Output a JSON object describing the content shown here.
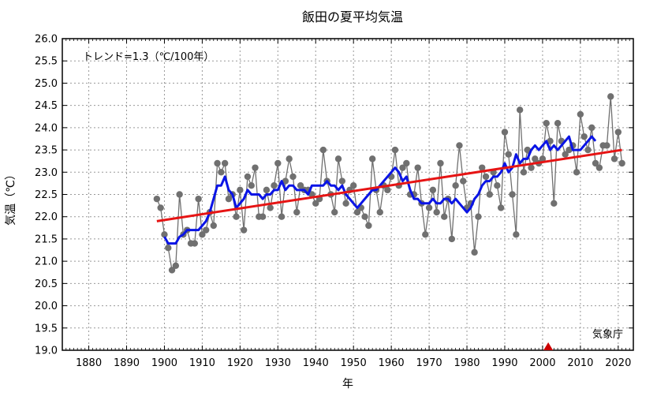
{
  "chart_data": {
    "type": "line",
    "title": "飯田の夏平均気温",
    "xlabel": "年",
    "ylabel": "気温（℃）",
    "annotation": "トレンド=1.3（℃/100年）",
    "source": "気象庁",
    "xlim": [
      1873,
      2024
    ],
    "ylim": [
      19.0,
      26.0
    ],
    "x_ticks": [
      1880,
      1890,
      1900,
      1910,
      1920,
      1930,
      1940,
      1950,
      1960,
      1970,
      1980,
      1990,
      2000,
      2010,
      2020
    ],
    "y_ticks": [
      "19.0",
      "19.5",
      "20.0",
      "20.5",
      "21.0",
      "21.5",
      "22.0",
      "22.5",
      "23.0",
      "23.5",
      "24.0",
      "24.5",
      "25.0",
      "25.5",
      "26.0"
    ],
    "grid": true,
    "marker_year": 2001.5,
    "colors": {
      "annual": "#707070",
      "moving_avg": "#0a14e6",
      "trend": "#e61414",
      "marker": "#cc0000",
      "grid": "#999999"
    },
    "series": [
      {
        "name": "",
        "kind": "annual",
        "start_year": 1898,
        "values": [
          22.4,
          22.2,
          21.6,
          21.3,
          20.8,
          20.9,
          22.5,
          21.6,
          21.7,
          21.4,
          21.4,
          22.4,
          21.6,
          21.7,
          22.1,
          21.8,
          23.2,
          23.0,
          23.2,
          22.4,
          22.5,
          22.0,
          22.6,
          21.7,
          22.9,
          22.7,
          23.1,
          22.0,
          22.0,
          22.6,
          22.2,
          22.7,
          23.2,
          22.0,
          22.8,
          23.3,
          22.9,
          22.1,
          22.7,
          22.6,
          22.6,
          22.5,
          22.3,
          22.4,
          23.5,
          22.8,
          22.5,
          22.1,
          23.3,
          22.8,
          22.3,
          22.6,
          22.7,
          22.1,
          22.2,
          22.0,
          21.8,
          23.3,
          22.6,
          22.1,
          22.7,
          22.6,
          22.9,
          23.5,
          22.7,
          23.1,
          23.2,
          22.5,
          22.5,
          23.1,
          22.3,
          21.6,
          22.2,
          22.6,
          22.1,
          23.2,
          22.0,
          22.4,
          21.5,
          22.7,
          23.6,
          22.8,
          22.2,
          22.3,
          21.2,
          22.0,
          23.1,
          22.9,
          22.5,
          23.0,
          22.7,
          22.2,
          23.9,
          23.4,
          22.5,
          21.6,
          24.4,
          23.0,
          23.5,
          23.1,
          23.3,
          23.2,
          23.3,
          24.1,
          23.7,
          22.3,
          24.1,
          23.7,
          23.4,
          23.5,
          23.6,
          23.0,
          24.3,
          23.8,
          23.5,
          24.0,
          23.2,
          23.1,
          23.6,
          23.6,
          24.7,
          23.3,
          23.9,
          23.2
        ]
      },
      {
        "name": "",
        "kind": "moving_average",
        "start_year": 1900,
        "values": [
          21.55,
          21.4,
          21.4,
          21.4,
          21.55,
          21.6,
          21.7,
          21.7,
          21.7,
          21.7,
          21.8,
          21.9,
          22.1,
          22.4,
          22.7,
          22.7,
          22.9,
          22.6,
          22.5,
          22.2,
          22.3,
          22.4,
          22.6,
          22.5,
          22.5,
          22.5,
          22.4,
          22.5,
          22.5,
          22.6,
          22.6,
          22.8,
          22.6,
          22.7,
          22.7,
          22.6,
          22.6,
          22.6,
          22.5,
          22.7,
          22.7,
          22.7,
          22.7,
          22.8,
          22.7,
          22.7,
          22.6,
          22.7,
          22.5,
          22.4,
          22.3,
          22.2,
          22.3,
          22.4,
          22.5,
          22.6,
          22.6,
          22.7,
          22.8,
          22.9,
          23.0,
          23.1,
          23.0,
          22.8,
          22.9,
          22.6,
          22.4,
          22.4,
          22.3,
          22.3,
          22.3,
          22.4,
          22.3,
          22.3,
          22.4,
          22.4,
          22.3,
          22.4,
          22.3,
          22.2,
          22.1,
          22.2,
          22.4,
          22.5,
          22.7,
          22.8,
          22.8,
          22.9,
          22.9,
          23.0,
          23.2,
          23.0,
          23.1,
          23.4,
          23.2,
          23.3,
          23.3,
          23.5,
          23.6,
          23.5,
          23.6,
          23.7,
          23.5,
          23.6,
          23.5,
          23.6,
          23.7,
          23.8,
          23.5,
          23.5,
          23.5,
          23.6,
          23.7,
          23.8,
          23.7
        ]
      },
      {
        "name": "",
        "kind": "trend",
        "x": [
          1898,
          2021
        ],
        "values": [
          21.9,
          23.5
        ]
      }
    ]
  }
}
